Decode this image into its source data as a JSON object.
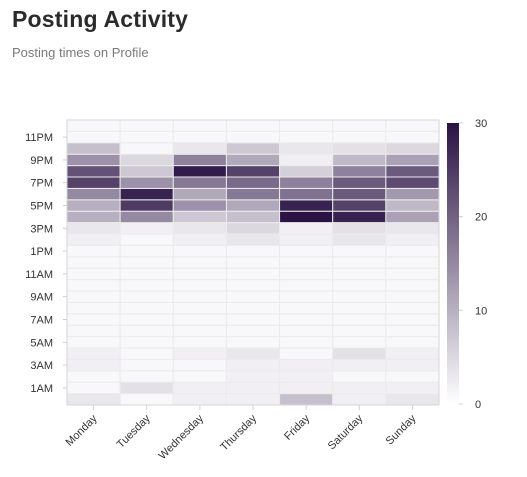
{
  "header": {
    "title": "Posting Activity",
    "subtitle": "Posting times on Profile"
  },
  "chart_data": {
    "type": "heatmap",
    "x_categories": [
      "Monday",
      "Tuesday",
      "Wednesday",
      "Thursday",
      "Friday",
      "Saturday",
      "Sunday"
    ],
    "y_categories": [
      "12AM",
      "1AM",
      "2AM",
      "3AM",
      "4AM",
      "5AM",
      "6AM",
      "7AM",
      "8AM",
      "9AM",
      "10AM",
      "11AM",
      "12PM",
      "1PM",
      "2PM",
      "3PM",
      "4PM",
      "5PM",
      "6PM",
      "7PM",
      "8PM",
      "9PM",
      "10PM",
      "11PM",
      "12AM"
    ],
    "y_tick_labels": [
      "1AM",
      "3AM",
      "5AM",
      "7AM",
      "9AM",
      "11AM",
      "1PM",
      "3PM",
      "5PM",
      "7PM",
      "9PM",
      "11PM"
    ],
    "values": [
      [
        3,
        1,
        2,
        2,
        8,
        2,
        3
      ],
      [
        1,
        4,
        2,
        2,
        2,
        2,
        2
      ],
      [
        1,
        1,
        1,
        2,
        2,
        1,
        1
      ],
      [
        2,
        1,
        1,
        2,
        2,
        2,
        2
      ],
      [
        2,
        1,
        2,
        3,
        1,
        4,
        2
      ],
      [
        1,
        1,
        1,
        1,
        1,
        1,
        1
      ],
      [
        1,
        1,
        1,
        1,
        1,
        1,
        1
      ],
      [
        1,
        1,
        1,
        1,
        1,
        1,
        1
      ],
      [
        1,
        1,
        1,
        1,
        1,
        1,
        1
      ],
      [
        1,
        1,
        1,
        1,
        1,
        1,
        1
      ],
      [
        1,
        1,
        1,
        1,
        1,
        1,
        1
      ],
      [
        1,
        1,
        1,
        1,
        1,
        1,
        1
      ],
      [
        1,
        1,
        1,
        1,
        1,
        1,
        1
      ],
      [
        1,
        1,
        1,
        1,
        1,
        1,
        1
      ],
      [
        2,
        1,
        2,
        3,
        2,
        3,
        2
      ],
      [
        3,
        2,
        3,
        5,
        2,
        4,
        3
      ],
      [
        10,
        15,
        7,
        8,
        30,
        28,
        12
      ],
      [
        10,
        25,
        14,
        11,
        28,
        24,
        9
      ],
      [
        15,
        28,
        11,
        17,
        18,
        21,
        13
      ],
      [
        24,
        14,
        17,
        19,
        16,
        21,
        23
      ],
      [
        22,
        7,
        29,
        24,
        6,
        16,
        21
      ],
      [
        14,
        5,
        16,
        11,
        2,
        9,
        12
      ],
      [
        8,
        1,
        3,
        7,
        3,
        4,
        5
      ],
      [
        1,
        1,
        1,
        1,
        1,
        1,
        1
      ],
      [
        1,
        1,
        1,
        1,
        1,
        1,
        1
      ]
    ],
    "color_scale": {
      "min": 0,
      "max": 30,
      "low_color": "#ffffff",
      "high_color": "#2a1344"
    },
    "colorbar_ticks": [
      0,
      10,
      20,
      30
    ]
  }
}
